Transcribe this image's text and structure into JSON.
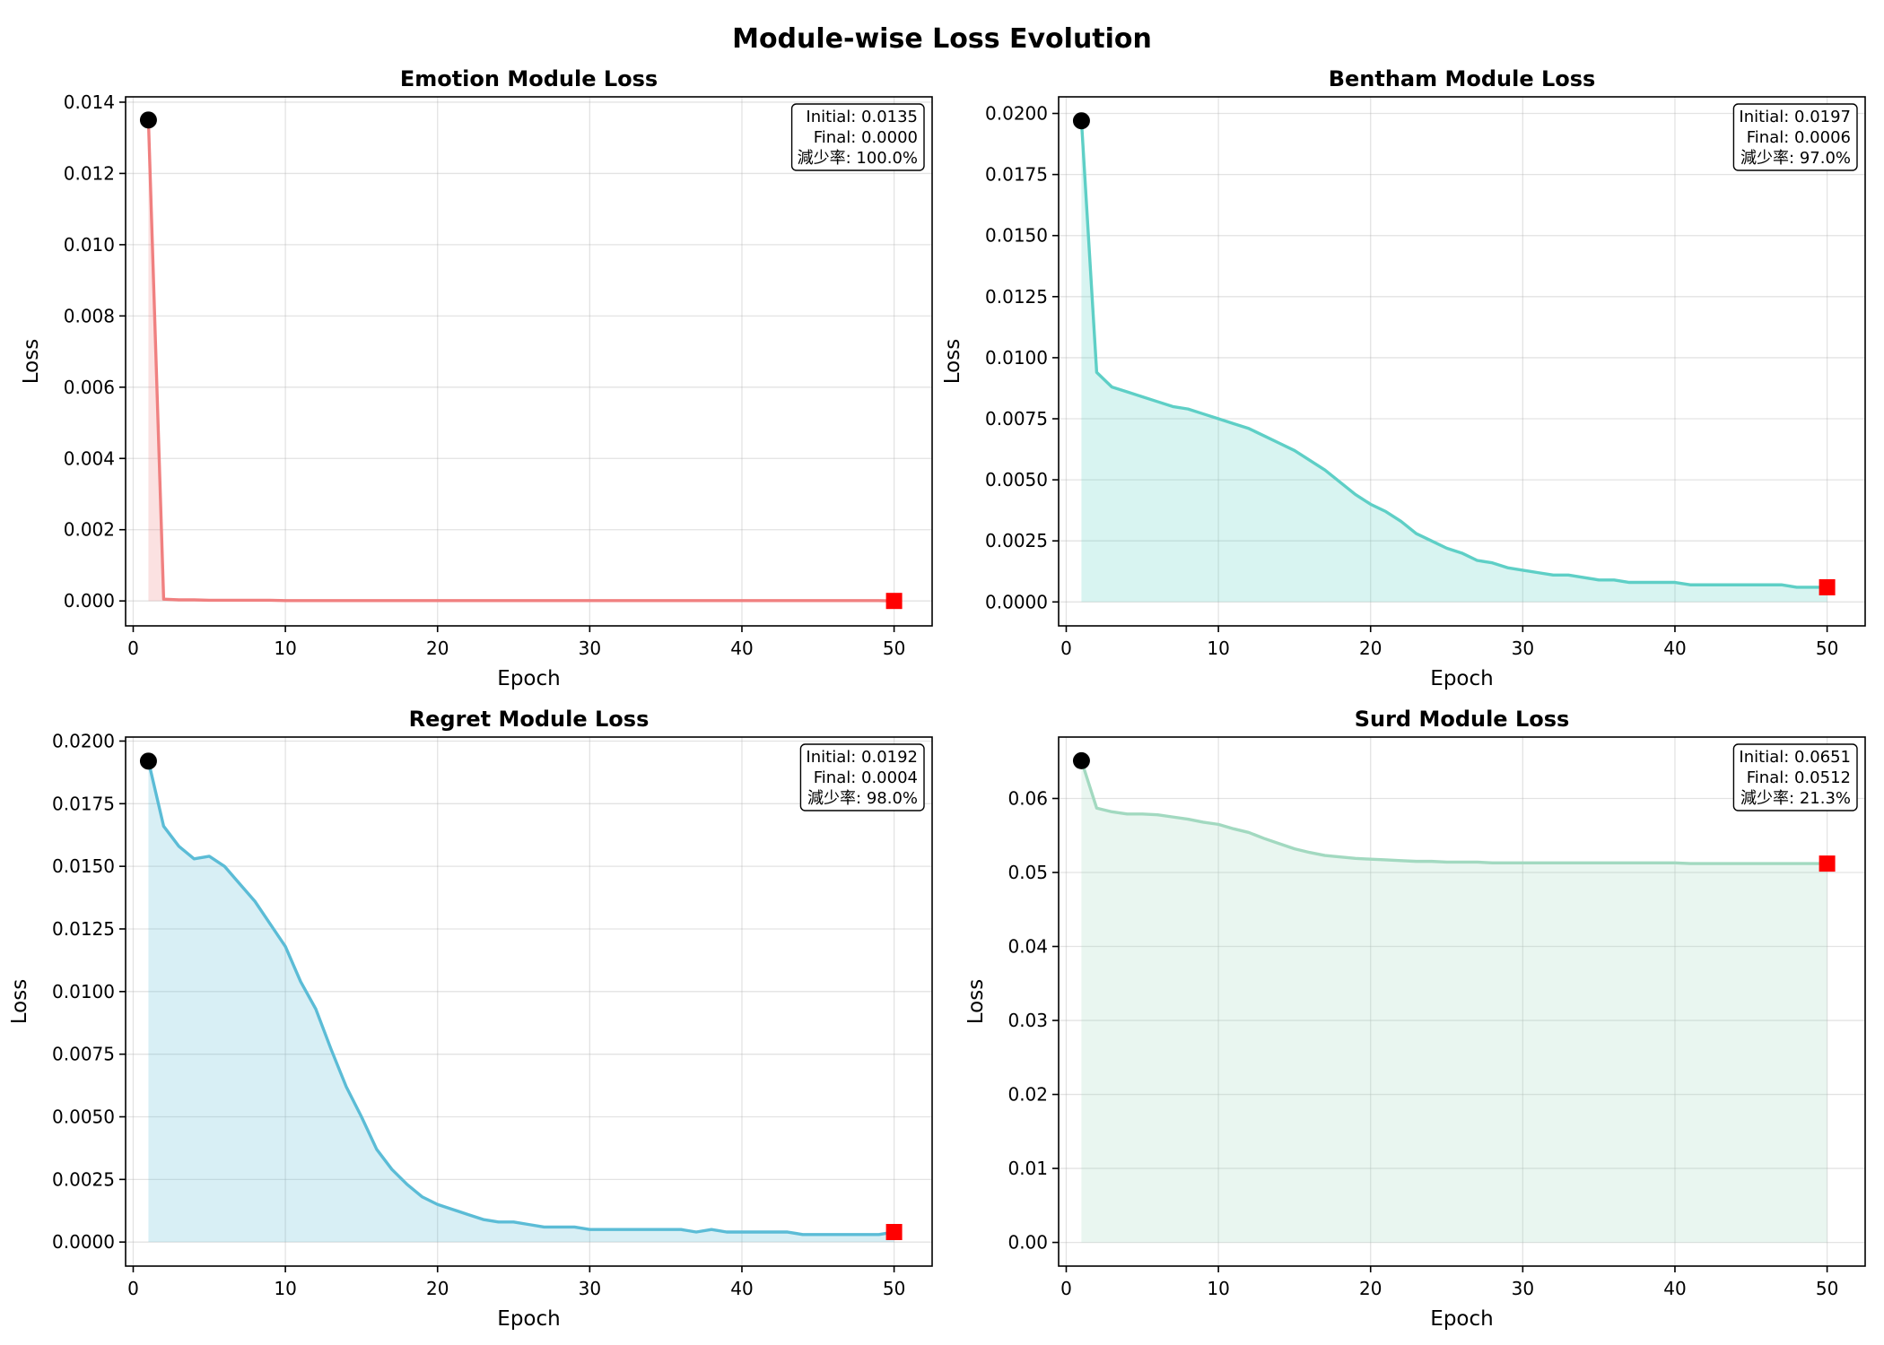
{
  "figure": {
    "title": "Module-wise Loss Evolution"
  },
  "chart_data": [
    {
      "type": "area",
      "title": "Emotion Module Loss",
      "xlabel": "Epoch",
      "ylabel": "Loss",
      "color": "#f08080",
      "xlim": [
        -0.5,
        52.5
      ],
      "ylim": [
        -0.0007,
        0.01415
      ],
      "xticks": [
        0,
        10,
        20,
        30,
        40,
        50
      ],
      "yticks": [
        0,
        0.002,
        0.004,
        0.006,
        0.008,
        0.01,
        0.012,
        0.014
      ],
      "ytick_decimals": 3,
      "x": [
        1,
        2,
        3,
        4,
        5,
        6,
        7,
        8,
        9,
        10,
        11,
        12,
        13,
        14,
        15,
        16,
        17,
        18,
        19,
        20,
        21,
        22,
        23,
        24,
        25,
        26,
        27,
        28,
        29,
        30,
        31,
        32,
        33,
        34,
        35,
        36,
        37,
        38,
        39,
        40,
        41,
        42,
        43,
        44,
        45,
        46,
        47,
        48,
        49,
        50
      ],
      "values": [
        0.0135,
        5e-05,
        3e-05,
        3e-05,
        2e-05,
        2e-05,
        2e-05,
        2e-05,
        2e-05,
        1e-05,
        1e-05,
        1e-05,
        1e-05,
        1e-05,
        1e-05,
        1e-05,
        1e-05,
        1e-05,
        1e-05,
        1e-05,
        1e-05,
        1e-05,
        1e-05,
        1e-05,
        1e-05,
        1e-05,
        1e-05,
        1e-05,
        1e-05,
        1e-05,
        1e-05,
        1e-05,
        1e-05,
        1e-05,
        1e-05,
        1e-05,
        1e-05,
        1e-05,
        1e-05,
        1e-05,
        1e-05,
        1e-05,
        1e-05,
        1e-05,
        1e-05,
        1e-05,
        1e-05,
        1e-05,
        1e-05,
        0.0
      ],
      "annotation": [
        "Initial: 0.0135",
        "Final: 0.0000",
        "減少率: 100.0%"
      ]
    },
    {
      "type": "area",
      "title": "Bentham Module Loss",
      "xlabel": "Epoch",
      "ylabel": "Loss",
      "color": "#5ecfc6",
      "xlim": [
        -0.5,
        52.5
      ],
      "ylim": [
        -0.00098,
        0.02068
      ],
      "xticks": [
        0,
        10,
        20,
        30,
        40,
        50
      ],
      "yticks": [
        0,
        0.0025,
        0.005,
        0.0075,
        0.01,
        0.0125,
        0.015,
        0.0175,
        0.02
      ],
      "ytick_decimals": 4,
      "x": [
        1,
        2,
        3,
        4,
        5,
        6,
        7,
        8,
        9,
        10,
        11,
        12,
        13,
        14,
        15,
        16,
        17,
        18,
        19,
        20,
        21,
        22,
        23,
        24,
        25,
        26,
        27,
        28,
        29,
        30,
        31,
        32,
        33,
        34,
        35,
        36,
        37,
        38,
        39,
        40,
        41,
        42,
        43,
        44,
        45,
        46,
        47,
        48,
        49,
        50
      ],
      "values": [
        0.0197,
        0.0094,
        0.0088,
        0.0086,
        0.0084,
        0.0082,
        0.008,
        0.0079,
        0.0077,
        0.0075,
        0.0073,
        0.0071,
        0.0068,
        0.0065,
        0.0062,
        0.0058,
        0.0054,
        0.0049,
        0.0044,
        0.004,
        0.0037,
        0.0033,
        0.0028,
        0.0025,
        0.0022,
        0.002,
        0.0017,
        0.0016,
        0.0014,
        0.0013,
        0.0012,
        0.0011,
        0.0011,
        0.001,
        0.0009,
        0.0009,
        0.0008,
        0.0008,
        0.0008,
        0.0008,
        0.0007,
        0.0007,
        0.0007,
        0.0007,
        0.0007,
        0.0007,
        0.0007,
        0.0006,
        0.0006,
        0.0006
      ],
      "annotation": [
        "Initial: 0.0197",
        "Final: 0.0006",
        "減少率: 97.0%"
      ]
    },
    {
      "type": "area",
      "title": "Regret Module Loss",
      "xlabel": "Epoch",
      "ylabel": "Loss",
      "color": "#5bbcd6",
      "xlim": [
        -0.5,
        52.5
      ],
      "ylim": [
        -0.00096,
        0.02016
      ],
      "xticks": [
        0,
        10,
        20,
        30,
        40,
        50
      ],
      "yticks": [
        0,
        0.0025,
        0.005,
        0.0075,
        0.01,
        0.0125,
        0.015,
        0.0175,
        0.02
      ],
      "ytick_decimals": 4,
      "x": [
        1,
        2,
        3,
        4,
        5,
        6,
        7,
        8,
        9,
        10,
        11,
        12,
        13,
        14,
        15,
        16,
        17,
        18,
        19,
        20,
        21,
        22,
        23,
        24,
        25,
        26,
        27,
        28,
        29,
        30,
        31,
        32,
        33,
        34,
        35,
        36,
        37,
        38,
        39,
        40,
        41,
        42,
        43,
        44,
        45,
        46,
        47,
        48,
        49,
        50
      ],
      "values": [
        0.0192,
        0.0166,
        0.0158,
        0.0153,
        0.0154,
        0.015,
        0.0143,
        0.0136,
        0.0127,
        0.0118,
        0.0104,
        0.0093,
        0.0077,
        0.0062,
        0.005,
        0.0037,
        0.0029,
        0.0023,
        0.0018,
        0.0015,
        0.0013,
        0.0011,
        0.0009,
        0.0008,
        0.0008,
        0.0007,
        0.0006,
        0.0006,
        0.0006,
        0.0005,
        0.0005,
        0.0005,
        0.0005,
        0.0005,
        0.0005,
        0.0005,
        0.0004,
        0.0005,
        0.0004,
        0.0004,
        0.0004,
        0.0004,
        0.0004,
        0.0003,
        0.0003,
        0.0003,
        0.0003,
        0.0003,
        0.0003,
        0.0004
      ],
      "annotation": [
        "Initial: 0.0192",
        "Final: 0.0004",
        "減少率: 98.0%"
      ]
    },
    {
      "type": "area",
      "title": "Surd Module Loss",
      "xlabel": "Epoch",
      "ylabel": "Loss",
      "color": "#a2d9c0",
      "xlim": [
        -0.5,
        52.5
      ],
      "ylim": [
        -0.0032,
        0.0683
      ],
      "xticks": [
        0,
        10,
        20,
        30,
        40,
        50
      ],
      "yticks": [
        0,
        0.01,
        0.02,
        0.03,
        0.04,
        0.05,
        0.06
      ],
      "ytick_decimals": 2,
      "x": [
        1,
        2,
        3,
        4,
        5,
        6,
        7,
        8,
        9,
        10,
        11,
        12,
        13,
        14,
        15,
        16,
        17,
        18,
        19,
        20,
        21,
        22,
        23,
        24,
        25,
        26,
        27,
        28,
        29,
        30,
        31,
        32,
        33,
        34,
        35,
        36,
        37,
        38,
        39,
        40,
        41,
        42,
        43,
        44,
        45,
        46,
        47,
        48,
        49,
        50
      ],
      "values": [
        0.0651,
        0.0587,
        0.0582,
        0.0579,
        0.0579,
        0.0578,
        0.0575,
        0.0572,
        0.0568,
        0.0565,
        0.0559,
        0.0554,
        0.0546,
        0.0539,
        0.0532,
        0.0527,
        0.0523,
        0.0521,
        0.0519,
        0.0518,
        0.0517,
        0.0516,
        0.0515,
        0.0515,
        0.0514,
        0.0514,
        0.0514,
        0.0513,
        0.0513,
        0.0513,
        0.0513,
        0.0513,
        0.0513,
        0.0513,
        0.0513,
        0.0513,
        0.0513,
        0.0513,
        0.0513,
        0.0513,
        0.0512,
        0.0512,
        0.0512,
        0.0512,
        0.0512,
        0.0512,
        0.0512,
        0.0512,
        0.0512,
        0.0512
      ],
      "annotation": [
        "Initial: 0.0651",
        "Final: 0.0512",
        "減少率: 21.3%"
      ]
    }
  ]
}
